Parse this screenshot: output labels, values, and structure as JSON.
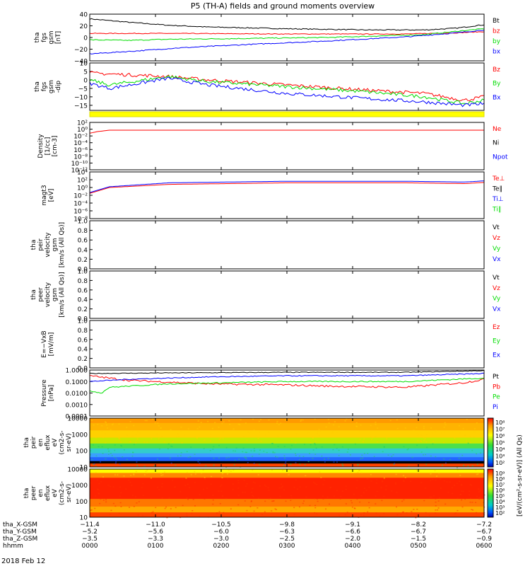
{
  "title": "P5 (TH-A) fields and ground moments overview",
  "date_label": "2018 Feb 12",
  "colors": {
    "black": "#000000",
    "red": "#ff0000",
    "green": "#00dd00",
    "blue": "#0000ff",
    "yellow": "#ffff00",
    "bar_border": "#dddd00"
  },
  "chart_data": [
    {
      "type": "line",
      "ylabel": [
        "tha",
        "fgs",
        "gsm",
        "[nT]"
      ],
      "ylim": [
        -40,
        40
      ],
      "yticks": [
        "40",
        "20",
        "0",
        "−20",
        "−40"
      ],
      "legend": [
        {
          "label": "Bt",
          "color": "black"
        },
        {
          "label": "bz",
          "color": "red"
        },
        {
          "label": "by",
          "color": "green"
        },
        {
          "label": "bx",
          "color": "blue"
        }
      ],
      "series": [
        {
          "label": "Bt",
          "color": "black",
          "noise": 0.8,
          "t": [
            0,
            0.1,
            0.2,
            0.3,
            0.5,
            0.7,
            0.85,
            0.93,
            1.0
          ],
          "y": [
            32,
            26,
            21,
            18,
            15,
            13,
            13,
            16,
            22
          ]
        },
        {
          "label": "bz",
          "color": "red",
          "noise": 0.6,
          "t": [
            0,
            0.2,
            0.5,
            0.8,
            0.93,
            1.0
          ],
          "y": [
            7,
            7,
            6,
            6,
            8,
            10
          ]
        },
        {
          "label": "by",
          "color": "green",
          "noise": 0.8,
          "t": [
            0,
            0.1,
            0.2,
            0.35,
            0.6,
            0.85,
            0.95,
            1.0
          ],
          "y": [
            -4,
            -5,
            -3,
            -2,
            0,
            5,
            12,
            15
          ]
        },
        {
          "label": "bx",
          "color": "blue",
          "noise": 0.8,
          "t": [
            0,
            0.12,
            0.22,
            0.4,
            0.6,
            0.8,
            0.93,
            1.0
          ],
          "y": [
            -28,
            -23,
            -18,
            -12,
            -6,
            1,
            8,
            13
          ]
        }
      ]
    },
    {
      "type": "line",
      "ylabel": [
        "tha",
        "fgs",
        "gsm",
        "-dip"
      ],
      "ylim": [
        -18,
        10
      ],
      "yticks": [
        "10",
        "5",
        "0",
        "−5",
        "−10",
        "−15"
      ],
      "tick_values": [
        10,
        5,
        0,
        -5,
        -10,
        -15
      ],
      "legend": [
        {
          "label": "Bz",
          "color": "red"
        },
        {
          "label": "By",
          "color": "green"
        },
        {
          "label": "Bx",
          "color": "blue"
        }
      ],
      "series": [
        {
          "label": "Bz",
          "color": "red",
          "noise": 1.0,
          "t": [
            0,
            0.1,
            0.2,
            0.3,
            0.5,
            0.7,
            0.85,
            0.95,
            1.0
          ],
          "y": [
            4,
            3,
            2,
            0,
            -3,
            -6,
            -8,
            -12,
            -10
          ]
        },
        {
          "label": "By",
          "color": "green",
          "noise": 1.0,
          "t": [
            0,
            0.05,
            0.2,
            0.3,
            0.5,
            0.7,
            0.85,
            0.95,
            1.0
          ],
          "y": [
            0,
            -3,
            2,
            -1,
            -4,
            -7,
            -10,
            -14,
            -12
          ]
        },
        {
          "label": "Bx",
          "color": "blue",
          "noise": 1.0,
          "t": [
            0,
            0.05,
            0.2,
            0.3,
            0.5,
            0.7,
            0.85,
            0.95,
            1.0
          ],
          "y": [
            -2,
            -5,
            1,
            -3,
            -8,
            -11,
            -13,
            -15,
            -14
          ]
        }
      ]
    },
    {
      "type": "line",
      "scale": "log",
      "ylabel": [
        "Density",
        "[1/cc]",
        "[cm-3]"
      ],
      "yticks": [
        "10²",
        "10⁰",
        "10⁻²",
        "10⁻⁴",
        "10⁻⁶",
        "10⁻⁸",
        "10⁻¹⁰",
        "10⁻¹²"
      ],
      "legend": [
        {
          "label": "Ne",
          "color": "red"
        },
        {
          "label": "Ni",
          "color": "black"
        },
        {
          "label": "Npot",
          "color": "blue"
        }
      ],
      "series": [
        {
          "label": "Ne",
          "color": "red",
          "t": [
            0,
            0.02,
            0.05,
            1.0
          ],
          "y": [
            -1.2,
            -0.7,
            -0.3,
            -0.3
          ]
        }
      ]
    },
    {
      "type": "line",
      "scale": "log",
      "ylabel": [
        "magt3",
        "[eV]"
      ],
      "yticks": [
        "10⁴",
        "10²",
        "10⁰",
        "10⁻²",
        "10⁻⁴",
        "10⁻⁶",
        "10⁻⁸"
      ],
      "legend": [
        {
          "label": "Te⊥",
          "color": "red"
        },
        {
          "label": "Te∥",
          "color": "black"
        },
        {
          "label": "Ti⊥",
          "color": "blue"
        },
        {
          "label": "Ti∥",
          "color": "green"
        }
      ],
      "series": [
        {
          "label": "Te",
          "color": "red",
          "t": [
            0,
            0.05,
            0.2,
            0.5,
            0.8,
            0.95,
            1.0
          ],
          "y": [
            -1.5,
            0,
            0.8,
            1.2,
            1.2,
            1.0,
            1.3
          ]
        },
        {
          "label": "Ti",
          "color": "blue",
          "t": [
            0,
            0.05,
            0.2,
            0.5,
            0.8,
            0.95,
            1.0
          ],
          "y": [
            -1.3,
            0.2,
            1.2,
            1.6,
            1.6,
            1.4,
            1.7
          ]
        }
      ]
    },
    {
      "type": "line",
      "ylabel": [
        "tha",
        "peir",
        "velocity",
        "gsm",
        "[km/s (All Qs)]"
      ],
      "ylim": [
        0,
        1
      ],
      "yticks": [
        "1.0",
        "0.8",
        "0.6",
        "0.4",
        "0.2",
        "0.0"
      ],
      "legend": [
        {
          "label": "Vt",
          "color": "black"
        },
        {
          "label": "Vz",
          "color": "red"
        },
        {
          "label": "Vy",
          "color": "green"
        },
        {
          "label": "Vx",
          "color": "blue"
        }
      ],
      "series": []
    },
    {
      "type": "line",
      "ylabel": [
        "tha",
        "peer",
        "velocity",
        "gsm",
        "[km/s (All Qs)]"
      ],
      "ylim": [
        0,
        1
      ],
      "yticks": [
        "1.0",
        "0.8",
        "0.6",
        "0.4",
        "0.2",
        "0.0"
      ],
      "legend": [
        {
          "label": "Vt",
          "color": "black"
        },
        {
          "label": "Vz",
          "color": "red"
        },
        {
          "label": "Vy",
          "color": "green"
        },
        {
          "label": "Vx",
          "color": "blue"
        }
      ],
      "series": []
    },
    {
      "type": "line",
      "ylabel": [
        "E=−VxB",
        "[mV/m]"
      ],
      "ylim": [
        0,
        1
      ],
      "yticks": [
        "1.0",
        "0.8",
        "0.6",
        "0.4",
        "0.2",
        "0.0"
      ],
      "legend": [
        {
          "label": "Ez",
          "color": "red"
        },
        {
          "label": "Ey",
          "color": "green"
        },
        {
          "label": "Ex",
          "color": "blue"
        }
      ],
      "series": []
    },
    {
      "type": "line",
      "scale": "log",
      "ylabel": [
        "Pressure",
        "[nPa]"
      ],
      "yticks": [
        "1.0000",
        "0.1000",
        "0.0100",
        "0.0010",
        "0.0001"
      ],
      "legend": [
        {
          "label": "Pt",
          "color": "black"
        },
        {
          "label": "Pb",
          "color": "red"
        },
        {
          "label": "Pe",
          "color": "green"
        },
        {
          "label": "Pi",
          "color": "blue"
        }
      ],
      "series": [
        {
          "label": "Pt",
          "color": "black",
          "noise": 0.03,
          "t": [
            0,
            0.2,
            0.5,
            0.8,
            1.0
          ],
          "y": [
            -0.3,
            -0.25,
            -0.2,
            -0.2,
            -0.05
          ]
        },
        {
          "label": "Pb",
          "color": "red",
          "noise": 0.08,
          "t": [
            0,
            0.1,
            0.3,
            0.5,
            0.6,
            0.8,
            0.95,
            1.0
          ],
          "y": [
            -0.5,
            -0.9,
            -1.2,
            -1.3,
            -1.4,
            -1.5,
            -1.1,
            -0.8
          ]
        },
        {
          "label": "Pe",
          "color": "green",
          "noise": 0.05,
          "t": [
            0,
            0.03,
            0.05,
            0.2,
            0.5,
            0.8,
            1.0
          ],
          "y": [
            -1.8,
            -2.0,
            -1.5,
            -1.2,
            -1.0,
            -1.0,
            -0.7
          ]
        },
        {
          "label": "Pi",
          "color": "blue",
          "noise": 0.04,
          "t": [
            0,
            0.1,
            0.3,
            0.5,
            0.8,
            1.0
          ],
          "y": [
            -1.0,
            -0.8,
            -0.6,
            -0.5,
            -0.5,
            -0.3
          ]
        }
      ]
    },
    {
      "type": "heatmap",
      "ylabel": [
        "tha",
        "peir",
        "en",
        "eflux",
        "eV",
        "(cm2-s-",
        "sr-eV)"
      ],
      "yticks": [
        "10000",
        "1000",
        "100",
        "10"
      ],
      "colorbar_label": "[eV/(cm²-s-sr-eV)] (All Qs)",
      "colorbar_ticks": [
        "10⁸",
        "10⁷",
        "10⁶",
        "10⁵",
        "10⁴",
        "10³",
        "10²"
      ]
    },
    {
      "type": "heatmap",
      "ylabel": [
        "tha",
        "peer",
        "en",
        "eflux",
        "eV",
        "(cm2-s-",
        "sr-eV)"
      ],
      "yticks": [
        "10000",
        "1000",
        "100",
        "10"
      ],
      "colorbar_label": "[eV/(cm²-s-sr-eV)] (All Qs)",
      "colorbar_ticks": [
        "10⁹",
        "10⁸",
        "10⁷",
        "10⁶",
        "10⁵",
        "10⁴",
        "10³",
        "10²"
      ]
    }
  ],
  "x_axis": {
    "rows": [
      {
        "label": "tha_X-GSM",
        "values": [
          "−11.4",
          "−11.0",
          "−10.5",
          "−9.8",
          "−9.1",
          "−8.2",
          "−7.2"
        ]
      },
      {
        "label": "tha_Y-GSM",
        "values": [
          "−5.2",
          "−5.6",
          "−6.0",
          "−6.3",
          "−6.6",
          "−6.7",
          "−6.7"
        ]
      },
      {
        "label": "tha_Z-GSM",
        "values": [
          "−3.5",
          "−3.3",
          "−3.0",
          "−2.5",
          "−2.0",
          "−1.5",
          "−0.9"
        ]
      },
      {
        "label": "hhmm",
        "values": [
          "0000",
          "0100",
          "0200",
          "0300",
          "0400",
          "0500",
          "0600"
        ]
      }
    ]
  }
}
